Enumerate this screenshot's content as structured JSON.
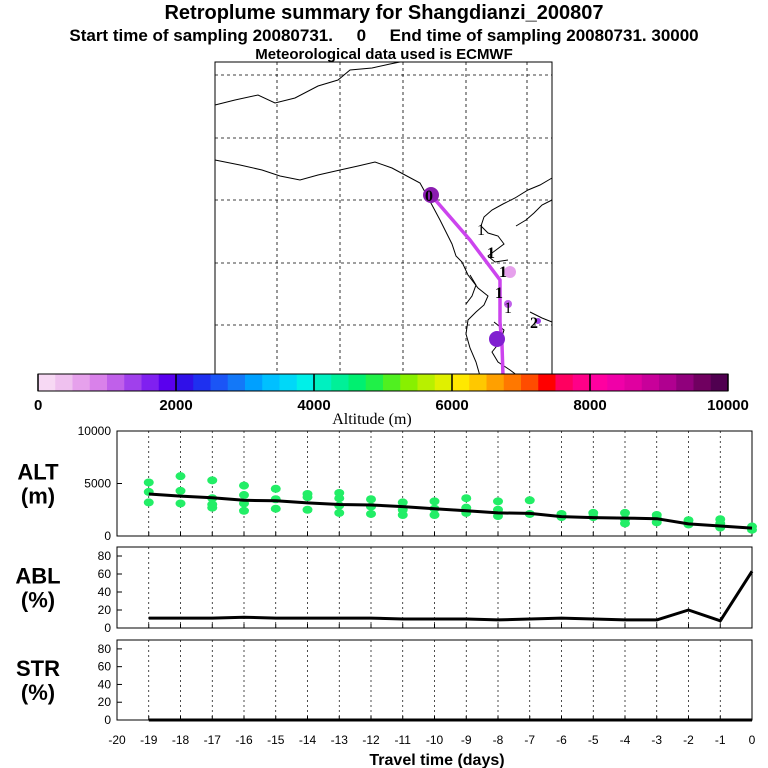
{
  "title": "Retroplume summary for Shangdianzi_200807",
  "subtitle": "Start time of sampling 20080731.     0     End time of sampling 20080731. 30000",
  "met_note": "Meteorological data used is ECMWF",
  "colorbar": {
    "label": "Altitude (m)",
    "ticks": [
      "0",
      "2000",
      "4000",
      "6000",
      "8000",
      "10000"
    ],
    "colors": [
      "#f7d9f4",
      "#efc1ef",
      "#e6a1ec",
      "#d981ea",
      "#c060ea",
      "#a040ec",
      "#8020f0",
      "#5a00ee",
      "#3010e8",
      "#1e30f0",
      "#1b55f6",
      "#1378f8",
      "#00a0ff",
      "#00c0ff",
      "#00d8f8",
      "#00f0e8",
      "#00f0c0",
      "#00f098",
      "#00f070",
      "#20f048",
      "#50f020",
      "#88f000",
      "#b8f000",
      "#e0f000",
      "#ffe800",
      "#ffc800",
      "#ffa000",
      "#ff7800",
      "#ff4c00",
      "#ff0000",
      "#ff0060",
      "#ff0088",
      "#ff00a0",
      "#f000a8",
      "#e000a0",
      "#c8009a",
      "#b00090",
      "#90007c",
      "#700060",
      "#500050"
    ]
  },
  "map": {
    "trajectory_labels": [
      "0",
      "1",
      "1",
      "1",
      "1",
      "1",
      "2"
    ],
    "trajectory_color": "#cc44ee"
  },
  "panels": [
    {
      "label_line1": "ALT",
      "label_line2": "(m)",
      "yticks": [
        "0",
        "5000",
        "10000"
      ]
    },
    {
      "label_line1": "ABL",
      "label_line2": "(%)",
      "yticks": [
        "0",
        "20",
        "40",
        "60",
        "80"
      ]
    },
    {
      "label_line1": "STR",
      "label_line2": "(%)",
      "yticks": [
        "0",
        "20",
        "40",
        "60",
        "80"
      ]
    }
  ],
  "chart_data": [
    {
      "type": "line",
      "title": "ALT",
      "ylabel": "ALT (m)",
      "xlabel": "Travel time (days)",
      "xlim": [
        -20,
        0
      ],
      "ylim": [
        0,
        10000
      ],
      "x": [
        -19,
        -18,
        -17,
        -16,
        -15,
        -14,
        -13,
        -12,
        -11,
        -10,
        -9,
        -8,
        -7,
        -6,
        -5,
        -4,
        -3,
        -2,
        -1,
        0
      ],
      "series": [
        {
          "name": "mean altitude",
          "values": [
            4000,
            3800,
            3650,
            3400,
            3350,
            3150,
            3000,
            2950,
            2800,
            2600,
            2400,
            2200,
            2150,
            1850,
            1750,
            1700,
            1650,
            1150,
            950,
            750
          ]
        }
      ],
      "scatter": {
        "name": "particle cluster altitudes",
        "color": "#22ee66",
        "points": [
          [
            -19,
            5100
          ],
          [
            -19,
            4200
          ],
          [
            -19,
            3200
          ],
          [
            -18,
            5700
          ],
          [
            -18,
            4300
          ],
          [
            -18,
            3100
          ],
          [
            -17,
            5300
          ],
          [
            -17,
            3600
          ],
          [
            -17,
            3000
          ],
          [
            -17,
            2700
          ],
          [
            -16,
            4800
          ],
          [
            -16,
            3900
          ],
          [
            -16,
            3100
          ],
          [
            -16,
            2400
          ],
          [
            -15,
            4500
          ],
          [
            -15,
            3500
          ],
          [
            -15,
            2600
          ],
          [
            -14,
            4000
          ],
          [
            -14,
            3700
          ],
          [
            -14,
            2500
          ],
          [
            -13,
            4100
          ],
          [
            -13,
            3600
          ],
          [
            -13,
            2900
          ],
          [
            -13,
            2200
          ],
          [
            -12,
            3500
          ],
          [
            -12,
            2800
          ],
          [
            -12,
            2100
          ],
          [
            -11,
            3200
          ],
          [
            -11,
            2500
          ],
          [
            -11,
            2000
          ],
          [
            -10,
            3300
          ],
          [
            -10,
            2600
          ],
          [
            -10,
            2000
          ],
          [
            -9,
            3600
          ],
          [
            -9,
            2700
          ],
          [
            -9,
            2200
          ],
          [
            -8,
            3300
          ],
          [
            -8,
            2500
          ],
          [
            -8,
            1900
          ],
          [
            -7,
            3400
          ],
          [
            -7,
            2100
          ],
          [
            -6,
            2100
          ],
          [
            -6,
            1800
          ],
          [
            -5,
            2200
          ],
          [
            -5,
            1800
          ],
          [
            -4,
            2200
          ],
          [
            -4,
            1600
          ],
          [
            -4,
            1200
          ],
          [
            -3,
            2000
          ],
          [
            -3,
            1700
          ],
          [
            -3,
            1300
          ],
          [
            -2,
            1500
          ],
          [
            -2,
            1100
          ],
          [
            -1,
            1600
          ],
          [
            -1,
            1200
          ],
          [
            -1,
            800
          ],
          [
            0,
            900
          ],
          [
            0,
            600
          ]
        ]
      }
    },
    {
      "type": "line",
      "title": "ABL",
      "ylabel": "ABL (%)",
      "xlabel": "Travel time (days)",
      "xlim": [
        -20,
        0
      ],
      "ylim": [
        0,
        90
      ],
      "x": [
        -19,
        -18,
        -17,
        -16,
        -15,
        -14,
        -13,
        -12,
        -11,
        -10,
        -9,
        -8,
        -7,
        -6,
        -5,
        -4,
        -3,
        -2,
        -1,
        0
      ],
      "series": [
        {
          "name": "ABL",
          "values": [
            11,
            11,
            11,
            12,
            11,
            11,
            11,
            11,
            10,
            10,
            10,
            9,
            10,
            11,
            10,
            9,
            9,
            20,
            8,
            63
          ]
        }
      ]
    },
    {
      "type": "line",
      "title": "STR",
      "ylabel": "STR (%)",
      "xlabel": "Travel time (days)",
      "xlim": [
        -20,
        0
      ],
      "ylim": [
        0,
        90
      ],
      "x": [
        -19,
        -18,
        -17,
        -16,
        -15,
        -14,
        -13,
        -12,
        -11,
        -10,
        -9,
        -8,
        -7,
        -6,
        -5,
        -4,
        -3,
        -2,
        -1,
        0
      ],
      "series": [
        {
          "name": "STR",
          "values": [
            0,
            0,
            0,
            0,
            0,
            0,
            0,
            0,
            0,
            0,
            0,
            0,
            0,
            0,
            0,
            0,
            0,
            0,
            0,
            0
          ]
        }
      ]
    }
  ],
  "x_axis": {
    "label": "Travel time (days)",
    "ticks": [
      "-20",
      "-19",
      "-18",
      "-17",
      "-16",
      "-15",
      "-14",
      "-13",
      "-12",
      "-11",
      "-10",
      "-9",
      "-8",
      "-7",
      "-6",
      "-5",
      "-4",
      "-3",
      "-2",
      "-1",
      "0"
    ]
  }
}
